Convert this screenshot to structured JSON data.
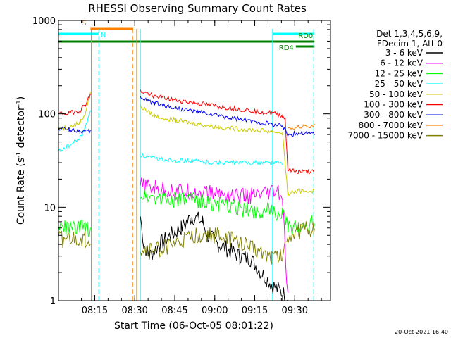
{
  "chart_data": {
    "type": "line",
    "title": "RHESSI Observing Summary Count Rates",
    "xlabel": "Start Time (06-Oct-05 08:01:22)",
    "ylabel_main": "Count Rate (s",
    "ylabel_sup1": "-1",
    "ylabel_mid": " detector",
    "ylabel_sup2": "-1",
    "ylabel_end": ")",
    "y_scale": "log",
    "ylim": [
      1,
      1000
    ],
    "xlim_minutes": [
      0,
      102
    ],
    "y_ticks": [
      {
        "v": 1,
        "label": "1"
      },
      {
        "v": 10,
        "label": "10"
      },
      {
        "v": 100,
        "label": "100"
      },
      {
        "v": 1000,
        "label": "1000"
      }
    ],
    "x_ticks": [
      {
        "t": 13.6,
        "label": "08:15"
      },
      {
        "t": 28.6,
        "label": "08:30"
      },
      {
        "t": 43.6,
        "label": "08:45"
      },
      {
        "t": 58.6,
        "label": "09:00"
      },
      {
        "t": 73.6,
        "label": "09:15"
      },
      {
        "t": 88.6,
        "label": "09:30"
      }
    ],
    "legend": {
      "header1": "Det 1,3,4,5,6,9,",
      "header2": "FDecim 1, Att 0",
      "entries": [
        {
          "label": "3 - 6 keV",
          "color": "#000000"
        },
        {
          "label": "6 - 12 keV",
          "color": "#ff00ff"
        },
        {
          "label": "12 - 25 keV",
          "color": "#00ff00"
        },
        {
          "label": "25 - 50 keV",
          "color": "#00ffff"
        },
        {
          "label": "50 - 100 keV",
          "color": "#cccc00"
        },
        {
          "label": "100 - 300 keV",
          "color": "#ff0000"
        },
        {
          "label": "300 - 800 keV",
          "color": "#0000ff"
        },
        {
          "label": "800 - 7000 keV",
          "color": "#ff8000"
        },
        {
          "label": "7000 - 15000 keV",
          "color": "#808000"
        }
      ]
    },
    "flags": [
      {
        "label": "S",
        "color": "#ff8000",
        "start": 12,
        "end": 28
      },
      {
        "label": "N",
        "color": "#00ffff",
        "start": 0,
        "end": 15
      },
      {
        "label": "N",
        "color": "#00ffff",
        "start": 80.3,
        "end": 96
      },
      {
        "label": "RD0",
        "color": "#008000",
        "start": 0,
        "end": 96
      },
      {
        "label": "RD4",
        "color": "#008000",
        "start": 89,
        "end": 96
      }
    ],
    "event_lines": [
      {
        "t": 12.3,
        "color": "#ff8000",
        "style": "solid"
      },
      {
        "t": 15.1,
        "color": "#00ffff",
        "style": "dashed"
      },
      {
        "t": 27.8,
        "color": "#ff8000",
        "style": "dashed"
      },
      {
        "t": 29.3,
        "color": "#ff8000",
        "style": "solid"
      },
      {
        "t": 30.7,
        "color": "#00ffff",
        "style": "solid"
      },
      {
        "t": 80.3,
        "color": "#00ffff",
        "style": "solid"
      },
      {
        "t": 95.7,
        "color": "#00ffff",
        "style": "dashed"
      }
    ],
    "series": [
      {
        "name": "3 - 6 keV",
        "color": "#000000",
        "x": [
          30.7,
          32,
          34,
          38,
          42,
          46,
          50,
          54,
          56,
          60,
          64,
          68,
          72,
          76,
          80,
          84,
          86
        ],
        "y": [
          8,
          4,
          3,
          4,
          5,
          6,
          8,
          7,
          5,
          4,
          3.5,
          3,
          2.8,
          2,
          1.5,
          1.2,
          1.1
        ]
      },
      {
        "name": "6 - 12 keV",
        "color": "#ff00ff",
        "x": [
          30.7,
          36,
          44,
          52,
          60,
          70,
          78,
          82,
          84,
          86
        ],
        "y": [
          17,
          16,
          15,
          14.5,
          14,
          13,
          13.5,
          15,
          12,
          1
        ]
      },
      {
        "name": "12 - 25 keV",
        "color": "#00ff00",
        "x": [
          0,
          10,
          12,
          30.7,
          36,
          44,
          52,
          60,
          70,
          80,
          84,
          86,
          90,
          95.7,
          96
        ],
        "y": [
          6,
          6,
          6,
          14,
          13,
          12,
          12,
          10.5,
          9.5,
          9,
          8.5,
          6,
          6,
          7,
          7
        ]
      },
      {
        "name": "25 - 50 keV",
        "color": "#00ffff",
        "x": [
          0,
          4,
          8,
          10,
          12,
          30.7,
          36,
          44,
          52,
          60,
          70,
          80,
          84
        ],
        "y": [
          40,
          45,
          55,
          70,
          110,
          36,
          33,
          32,
          31,
          30,
          30,
          30,
          30
        ]
      },
      {
        "name": "50 - 100 keV",
        "color": "#cccc00",
        "x": [
          0,
          4,
          8,
          10,
          12,
          30.7,
          36,
          44,
          52,
          60,
          70,
          80,
          84,
          86,
          90,
          96
        ],
        "y": [
          70,
          72,
          80,
          100,
          170,
          120,
          95,
          85,
          78,
          72,
          68,
          65,
          62,
          14,
          15,
          15
        ]
      },
      {
        "name": "100 - 300 keV",
        "color": "#ff0000",
        "x": [
          0,
          4,
          8,
          10,
          12,
          30.7,
          36,
          44,
          52,
          60,
          70,
          80,
          84,
          85,
          86,
          90,
          96
        ],
        "y": [
          100,
          102,
          108,
          125,
          160,
          175,
          155,
          140,
          130,
          120,
          110,
          102,
          95,
          90,
          25,
          24,
          24
        ]
      },
      {
        "name": "300 - 800 keV",
        "color": "#0000ff",
        "x": [
          0,
          4,
          8,
          10,
          12,
          30.7,
          36,
          44,
          52,
          60,
          70,
          80,
          84,
          86,
          90,
          96
        ],
        "y": [
          70,
          68,
          66,
          64,
          64,
          150,
          130,
          115,
          105,
          95,
          85,
          78,
          74,
          60,
          62,
          62
        ]
      },
      {
        "name": "800 - 7000 keV",
        "color": "#ff8000",
        "x": [
          86,
          90,
          96
        ],
        "y": [
          70,
          72,
          75
        ]
      },
      {
        "name": "7000 - 15000 keV",
        "color": "#808000",
        "x": [
          0,
          10,
          12,
          30.7,
          36,
          44,
          52,
          60,
          70,
          80,
          84,
          86,
          90,
          95.7,
          96
        ],
        "y": [
          4.5,
          4.5,
          4.5,
          3.5,
          3.5,
          4,
          5,
          5,
          4,
          3,
          3,
          5,
          5.5,
          6,
          6
        ]
      }
    ],
    "footer_date": "20-Oct-2021 16:40"
  }
}
